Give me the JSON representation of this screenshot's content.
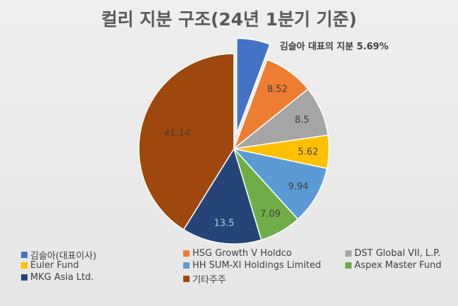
{
  "title": "컬리 지분 구조(24년 1분기 기준)",
  "chart_data": {
    "type": "pie",
    "title": "컬리 지분 구조(24년 1분기 기준)",
    "slices": [
      {
        "name": "김슬아(대표이사)",
        "value": 5.69,
        "label": "김슬아 대표의 지분 5.69%",
        "color": "#4472c4",
        "exploded": true
      },
      {
        "name": "HSG Growth V Holdco",
        "value": 8.52,
        "label": "8.52",
        "color": "#ed7d31"
      },
      {
        "name": "DST Global VII, L.P.",
        "value": 8.5,
        "label": "8.5",
        "color": "#a5a5a5"
      },
      {
        "name": "Euler Fund",
        "value": 5.62,
        "label": "5.62",
        "color": "#ffc000"
      },
      {
        "name": "HH SUM-XI Holdings Limited",
        "value": 9.94,
        "label": "9.94",
        "color": "#5b9bd5"
      },
      {
        "name": "Aspex Master Fund",
        "value": 7.09,
        "label": "7.09",
        "color": "#70ad47"
      },
      {
        "name": "MKG Asia Ltd.",
        "value": 13.5,
        "label": "13.5",
        "color": "#264478"
      },
      {
        "name": "기타주주",
        "value": 41.14,
        "label": "41.14",
        "color": "#9e480e"
      }
    ],
    "legend_position": "bottom"
  }
}
